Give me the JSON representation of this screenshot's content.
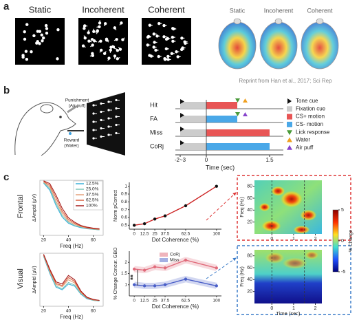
{
  "panel_a": {
    "label": "a",
    "titles": [
      "Static",
      "Incoherent",
      "Coherent"
    ],
    "brain_titles": [
      "Static",
      "Incoherent",
      "Coherent"
    ],
    "caption": "Reprint from Han et al., 2017; Sci Rep"
  },
  "panel_b": {
    "label": "b",
    "punishment": [
      "Punishment",
      "(Air puff)"
    ],
    "reward": [
      "Reward",
      "(Water)"
    ],
    "rows": [
      "Hit",
      "FA",
      "Miss",
      "CoRj"
    ],
    "time_ticks": [
      "-2~3",
      "0",
      "1.5"
    ],
    "time_label": "Time (sec)",
    "legend": [
      "Tone cue",
      "Fixation cue",
      "CS+ motion",
      "CS- motion",
      "Lick response",
      "Water",
      "Air puff"
    ]
  },
  "panel_c": {
    "label": "c",
    "row_labels": [
      "Frontal",
      "Visual"
    ],
    "annotation": "**",
    "heatmaps": [
      {
        "y_label": "Freq (Hz)",
        "ylim": [
          0,
          90
        ],
        "yticks": [
          20,
          40,
          60,
          80
        ],
        "xlim": [
          -0.8,
          2.3
        ],
        "xticks": [
          0,
          1,
          2
        ]
      },
      {
        "y_label": "Freq (Hz)",
        "x_label": "Time (sec)",
        "ylim": [
          0,
          90
        ],
        "yticks": [
          20,
          40,
          60,
          80
        ],
        "xlim": [
          -0.8,
          2.3
        ],
        "xticks": [
          0,
          1,
          2
        ]
      }
    ],
    "colorbar": {
      "clim": [
        -5,
        5
      ],
      "ticks": [
        5,
        0,
        -5
      ],
      "label": "% Change"
    }
  },
  "chart_data": [
    {
      "type": "line",
      "x_label": "Freq (Hz)",
      "y_label": "ΔAmptd (μV)",
      "legend": true,
      "x": [
        20,
        25,
        30,
        35,
        40,
        45,
        50,
        55,
        60,
        65
      ],
      "xlim": [
        17,
        68
      ],
      "xticks": [
        20,
        40,
        60
      ],
      "ylim": [
        0,
        10
      ],
      "series": [
        {
          "name": "12.5%",
          "color": "#3ab0d8",
          "values": [
            9.5,
            8.2,
            5.4,
            3.3,
            2.2,
            1.7,
            1.4,
            1.2,
            1.1,
            1.0
          ]
        },
        {
          "name": "25.0%",
          "color": "#7fc6b8",
          "values": [
            9.6,
            8.5,
            5.8,
            3.6,
            2.4,
            1.8,
            1.5,
            1.3,
            1.1,
            1.0
          ]
        },
        {
          "name": "37.5%",
          "color": "#e4a07a",
          "values": [
            9.7,
            8.8,
            6.2,
            4.0,
            2.6,
            2.0,
            1.6,
            1.3,
            1.2,
            1.1
          ]
        },
        {
          "name": "62.5%",
          "color": "#d9603f",
          "values": [
            9.8,
            9.1,
            6.8,
            4.4,
            2.9,
            2.2,
            1.7,
            1.4,
            1.2,
            1.1
          ]
        },
        {
          "name": "100%",
          "color": "#a51c1c",
          "values": [
            9.9,
            9.4,
            7.3,
            4.9,
            3.2,
            2.4,
            1.8,
            1.5,
            1.3,
            1.2
          ]
        }
      ]
    },
    {
      "type": "line",
      "x_label": "Freq (Hz)",
      "y_label": "ΔAmptd (μV)",
      "legend": false,
      "x": [
        20,
        25,
        30,
        35,
        40,
        45,
        50,
        55,
        60,
        65
      ],
      "xlim": [
        17,
        68
      ],
      "xticks": [
        20,
        40,
        60
      ],
      "ylim": [
        0,
        10
      ],
      "series": [
        {
          "color": "#3ab0d8",
          "values": [
            9.4,
            6.2,
            3.6,
            3.1,
            4.2,
            3.8,
            2.3,
            1.4,
            1.1,
            1.0
          ]
        },
        {
          "color": "#7fc6b8",
          "values": [
            9.5,
            6.4,
            3.8,
            3.3,
            4.5,
            4.0,
            2.4,
            1.5,
            1.1,
            1.0
          ]
        },
        {
          "color": "#e4a07a",
          "values": [
            9.6,
            6.6,
            4.1,
            3.7,
            5.0,
            4.4,
            2.6,
            1.6,
            1.2,
            1.1
          ]
        },
        {
          "color": "#d9603f",
          "values": [
            9.7,
            6.8,
            4.3,
            3.9,
            5.4,
            4.7,
            2.7,
            1.6,
            1.2,
            1.1
          ]
        },
        {
          "color": "#a51c1c",
          "values": [
            9.8,
            7.0,
            4.6,
            4.2,
            5.8,
            5.0,
            2.9,
            1.7,
            1.3,
            1.1
          ]
        }
      ]
    },
    {
      "type": "line",
      "x_label": "Dot Coherence (%)",
      "y_label": "Norm pCorrect",
      "markers": true,
      "x": [
        0,
        12.5,
        25,
        37.5,
        62.5,
        100
      ],
      "xlim": [
        -6,
        106
      ],
      "xticks": [
        0,
        12.5,
        25,
        37.5,
        62.5,
        100
      ],
      "ylim": [
        0.45,
        1.05
      ],
      "yticks": [
        0.5,
        0.6,
        0.7,
        0.8,
        0.9,
        1
      ],
      "series": [
        {
          "color": "#cc2222",
          "marker_color": "#111111",
          "values": [
            0.5,
            0.52,
            0.58,
            0.62,
            0.75,
            1.0
          ]
        }
      ]
    },
    {
      "type": "line",
      "x_label": "Dot Coherence (%)",
      "y_label": "% Change Concur. GBO",
      "markers": true,
      "legend": true,
      "x": [
        0,
        12.5,
        25,
        37.5,
        62.5,
        100
      ],
      "xlim": [
        -6,
        106
      ],
      "xticks": [
        0,
        12.5,
        25,
        37.5,
        62.5,
        100
      ],
      "ylim": [
        0.5,
        2.5
      ],
      "yticks": [
        1,
        1.5,
        2
      ],
      "series": [
        {
          "name": "CoRj",
          "color": "#e06a7a",
          "values": [
            1.7,
            1.65,
            1.8,
            1.75,
            2.1,
            1.75
          ]
        },
        {
          "name": "Miss",
          "color": "#4a5fc8",
          "values": [
            1.0,
            0.95,
            0.95,
            1.0,
            1.25,
            0.95
          ]
        }
      ]
    }
  ]
}
